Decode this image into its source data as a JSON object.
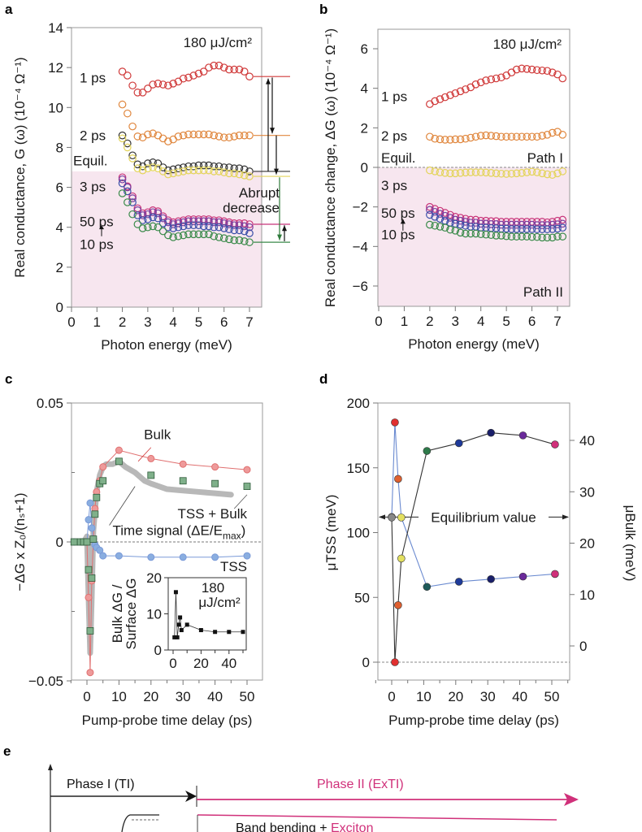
{
  "chart_data": [
    {
      "panel": "a",
      "type": "scatter",
      "annotation": "180 μJ/cm²",
      "xlabel": "Photon energy (meV)",
      "ylabel": "Real conductance, G (ω) (10⁻⁴ Ω⁻¹)",
      "xlim": [
        0,
        7.5
      ],
      "ylim": [
        0,
        14
      ],
      "xticks": [
        "0",
        "1",
        "2",
        "3",
        "4",
        "5",
        "6",
        "7"
      ],
      "yticks": [
        "0",
        "2",
        "4",
        "6",
        "8",
        "10",
        "12",
        "14"
      ],
      "shaded_region": {
        "ymax": 6.8,
        "color": "#f7e6ef"
      },
      "side_annotation": "Abrupt decrease",
      "x": [
        2.0,
        2.2,
        2.4,
        2.6,
        2.8,
        3.0,
        3.2,
        3.4,
        3.6,
        3.8,
        4.0,
        4.2,
        4.4,
        4.6,
        4.8,
        5.0,
        5.2,
        5.4,
        5.6,
        5.8,
        6.0,
        6.2,
        6.4,
        6.6,
        6.8,
        7.0
      ],
      "series": [
        {
          "name": "1 ps",
          "color": "#d03a3a",
          "values": [
            11.8,
            11.6,
            11.1,
            10.75,
            10.75,
            10.95,
            11.15,
            11.2,
            11.15,
            11.1,
            11.2,
            11.3,
            11.45,
            11.5,
            11.6,
            11.7,
            11.8,
            12.0,
            12.1,
            12.1,
            12.0,
            11.9,
            11.9,
            11.9,
            11.8,
            11.55
          ]
        },
        {
          "name": "2 ps",
          "color": "#e0873e",
          "values": [
            10.15,
            9.7,
            9.05,
            8.55,
            8.5,
            8.65,
            8.7,
            8.6,
            8.45,
            8.3,
            8.4,
            8.55,
            8.6,
            8.65,
            8.65,
            8.65,
            8.65,
            8.65,
            8.6,
            8.55,
            8.5,
            8.5,
            8.55,
            8.6,
            8.6,
            8.6
          ]
        },
        {
          "name": "Equil.",
          "color": "#333333",
          "values": [
            8.6,
            8.2,
            7.6,
            7.15,
            7.05,
            7.2,
            7.25,
            7.2,
            7.0,
            6.85,
            6.9,
            6.95,
            7.0,
            7.05,
            7.05,
            7.1,
            7.1,
            7.1,
            7.05,
            7.05,
            7.0,
            7.0,
            6.95,
            6.95,
            6.9,
            6.8
          ]
        },
        {
          "name": "3 ps",
          "color": "#e3d45a",
          "values": [
            8.45,
            8.0,
            7.45,
            6.95,
            6.85,
            6.95,
            7.0,
            6.95,
            6.8,
            6.65,
            6.7,
            6.75,
            6.8,
            6.85,
            6.85,
            6.85,
            6.85,
            6.85,
            6.8,
            6.8,
            6.75,
            6.7,
            6.7,
            6.65,
            6.6,
            6.55
          ]
        },
        {
          "name": "50 ps",
          "color": "#c8357a",
          "values": [
            6.5,
            6.05,
            5.55,
            4.95,
            4.7,
            4.75,
            4.85,
            4.8,
            4.55,
            4.35,
            4.25,
            4.3,
            4.35,
            4.4,
            4.4,
            4.4,
            4.4,
            4.4,
            4.35,
            4.35,
            4.3,
            4.25,
            4.2,
            4.2,
            4.2,
            4.15
          ]
        },
        {
          "name": "purple",
          "color": "#7a3fa0",
          "values": [
            6.4,
            6.0,
            5.45,
            4.85,
            4.6,
            4.65,
            4.75,
            4.7,
            4.45,
            4.25,
            4.15,
            4.2,
            4.25,
            4.3,
            4.3,
            4.3,
            4.3,
            4.3,
            4.25,
            4.25,
            4.2,
            4.15,
            4.1,
            4.1,
            4.05,
            4.0
          ]
        },
        {
          "name": "blue",
          "color": "#3a4fa8",
          "values": [
            6.2,
            5.8,
            5.25,
            4.6,
            4.35,
            4.4,
            4.5,
            4.45,
            4.2,
            4.0,
            3.95,
            4.0,
            4.05,
            4.1,
            4.1,
            4.1,
            4.05,
            4.05,
            4.0,
            4.0,
            3.95,
            3.9,
            3.85,
            3.85,
            3.8,
            3.7
          ]
        },
        {
          "name": "10 ps",
          "color": "#3a8a4a",
          "values": [
            5.7,
            5.25,
            4.65,
            4.15,
            3.95,
            4.0,
            4.05,
            4.0,
            3.8,
            3.6,
            3.5,
            3.55,
            3.6,
            3.65,
            3.65,
            3.65,
            3.65,
            3.65,
            3.55,
            3.5,
            3.45,
            3.4,
            3.35,
            3.35,
            3.3,
            3.25
          ]
        }
      ],
      "labels": [
        {
          "text": "1 ps",
          "color": "#d03a3a",
          "y": 11.5
        },
        {
          "text": "2 ps",
          "color": "#e0873e",
          "y": 8.6
        },
        {
          "text": "Equil.",
          "color": "#111111",
          "y": 7.35
        },
        {
          "text": "3 ps",
          "color": "#e3d45a",
          "y": 6.05
        },
        {
          "text": "50 ps",
          "color": "#c8357a",
          "y": 4.3
        },
        {
          "text": "10 ps",
          "color": "#3a8a4a",
          "y": 3.15
        }
      ]
    },
    {
      "panel": "b",
      "type": "scatter",
      "annotation": "180 μJ/cm²",
      "xlabel": "Photon energy (meV)",
      "ylabel": "Real conductance change, ΔG (ω) (10⁻⁴ Ω⁻¹)",
      "xlim": [
        0,
        7.5
      ],
      "ylim": [
        -7,
        7
      ],
      "xticks": [
        "0",
        "1",
        "2",
        "3",
        "4",
        "5",
        "6",
        "7"
      ],
      "yticks": [
        "−6",
        "−4",
        "−2",
        "0",
        "2",
        "4",
        "6"
      ],
      "ytick_values": [
        -6,
        -4,
        -2,
        0,
        2,
        4,
        6
      ],
      "shaded_region": {
        "ymax": 0,
        "color": "#f7e6ef"
      },
      "path_labels": {
        "path1": "Path I",
        "path2": "Path II"
      },
      "x": [
        2.0,
        2.2,
        2.4,
        2.6,
        2.8,
        3.0,
        3.2,
        3.4,
        3.6,
        3.8,
        4.0,
        4.2,
        4.4,
        4.6,
        4.8,
        5.0,
        5.2,
        5.4,
        5.6,
        5.8,
        6.0,
        6.2,
        6.4,
        6.6,
        6.8,
        7.0,
        7.2
      ],
      "series": [
        {
          "name": "1 ps",
          "color": "#d03a3a",
          "values": [
            3.2,
            3.35,
            3.45,
            3.55,
            3.65,
            3.75,
            3.85,
            3.95,
            4.05,
            4.2,
            4.3,
            4.4,
            4.45,
            4.5,
            4.55,
            4.65,
            4.8,
            4.95,
            5.0,
            4.98,
            4.95,
            4.92,
            4.9,
            4.88,
            4.8,
            4.7,
            4.5
          ]
        },
        {
          "name": "2 ps",
          "color": "#e0873e",
          "values": [
            1.55,
            1.45,
            1.42,
            1.4,
            1.4,
            1.42,
            1.42,
            1.45,
            1.5,
            1.55,
            1.6,
            1.62,
            1.6,
            1.58,
            1.55,
            1.55,
            1.55,
            1.55,
            1.55,
            1.55,
            1.55,
            1.55,
            1.6,
            1.65,
            1.75,
            1.8,
            1.65
          ]
        },
        {
          "name": "3 ps",
          "color": "#e3d45a",
          "values": [
            -0.15,
            -0.2,
            -0.25,
            -0.28,
            -0.3,
            -0.3,
            -0.28,
            -0.26,
            -0.25,
            -0.25,
            -0.25,
            -0.26,
            -0.28,
            -0.3,
            -0.32,
            -0.33,
            -0.32,
            -0.3,
            -0.28,
            -0.25,
            -0.22,
            -0.25,
            -0.3,
            -0.35,
            -0.38,
            -0.3,
            -0.2
          ]
        },
        {
          "name": "50 ps",
          "color": "#c8357a",
          "values": [
            -2.0,
            -2.1,
            -2.2,
            -2.3,
            -2.4,
            -2.5,
            -2.55,
            -2.6,
            -2.65,
            -2.65,
            -2.7,
            -2.7,
            -2.72,
            -2.72,
            -2.75,
            -2.75,
            -2.75,
            -2.75,
            -2.75,
            -2.75,
            -2.75,
            -2.75,
            -2.75,
            -2.78,
            -2.75,
            -2.7,
            -2.65
          ]
        },
        {
          "name": "purple",
          "color": "#7a3fa0",
          "values": [
            -2.15,
            -2.25,
            -2.35,
            -2.45,
            -2.55,
            -2.65,
            -2.7,
            -2.75,
            -2.8,
            -2.8,
            -2.85,
            -2.85,
            -2.87,
            -2.87,
            -2.9,
            -2.9,
            -2.9,
            -2.9,
            -2.9,
            -2.9,
            -2.9,
            -2.92,
            -2.92,
            -2.92,
            -2.9,
            -2.88,
            -2.85
          ]
        },
        {
          "name": "blue",
          "color": "#3a4fa8",
          "values": [
            -2.4,
            -2.5,
            -2.6,
            -2.7,
            -2.8,
            -2.85,
            -2.9,
            -2.95,
            -3.0,
            -3.0,
            -3.05,
            -3.05,
            -3.07,
            -3.08,
            -3.1,
            -3.1,
            -3.12,
            -3.12,
            -3.12,
            -3.12,
            -3.12,
            -3.13,
            -3.13,
            -3.13,
            -3.12,
            -3.1,
            -3.05
          ]
        },
        {
          "name": "10 ps",
          "color": "#3a8a4a",
          "values": [
            -2.9,
            -2.95,
            -3.0,
            -3.05,
            -3.15,
            -3.2,
            -3.3,
            -3.35,
            -3.35,
            -3.35,
            -3.38,
            -3.4,
            -3.42,
            -3.45,
            -3.45,
            -3.48,
            -3.5,
            -3.5,
            -3.5,
            -3.5,
            -3.52,
            -3.52,
            -3.55,
            -3.55,
            -3.55,
            -3.5,
            -3.5
          ]
        }
      ],
      "labels": [
        {
          "text": "1 ps",
          "color": "#d03a3a",
          "y": 3.6
        },
        {
          "text": "2 ps",
          "color": "#e0873e",
          "y": 1.6
        },
        {
          "text": "Equil.",
          "color": "#111111",
          "y": 0.5
        },
        {
          "text": "3 ps",
          "color": "#e3d45a",
          "y": -0.9
        },
        {
          "text": "50 ps",
          "color": "#c8357a",
          "y": -2.3
        },
        {
          "text": "10 ps",
          "color": "#3a8a4a",
          "y": -3.4
        }
      ]
    },
    {
      "panel": "c",
      "type": "line",
      "xlabel": "Pump-probe time delay (ps)",
      "ylabel": "−ΔG x Z₀/(nₛ+1)",
      "xlim": [
        -5,
        50
      ],
      "ylim": [
        -0.05,
        0.05
      ],
      "xticks": [
        "0",
        "10",
        "20",
        "30",
        "40",
        "50"
      ],
      "xtick_values": [
        0,
        10,
        20,
        30,
        40,
        50
      ],
      "yticks": [
        "−0.05",
        "0",
        "0.05"
      ],
      "ytick_values": [
        -0.05,
        0,
        0.05
      ],
      "series": [
        {
          "name": "Bulk",
          "color": "#e07070",
          "x": [
            -4,
            -2,
            -1,
            0,
            0.5,
            1,
            1.5,
            2,
            2.5,
            3,
            4,
            5,
            10,
            20,
            30,
            40,
            50
          ],
          "y": [
            0,
            0,
            0,
            0,
            -0.02,
            -0.047,
            -0.014,
            0.001,
            0.012,
            0.018,
            0.022,
            0.027,
            0.033,
            0.03,
            0.028,
            0.027,
            0.026
          ]
        },
        {
          "name": "TSS + Bulk",
          "color": "#5a9a6a",
          "x": [
            -4,
            -2,
            -1,
            0,
            0.5,
            1,
            1.5,
            2,
            2.5,
            3,
            4,
            5,
            10,
            20,
            30,
            40,
            50
          ],
          "y": [
            0,
            0,
            0,
            0,
            -0.01,
            -0.032,
            -0.013,
            0.001,
            0.01,
            0.016,
            0.021,
            0.022,
            0.029,
            0.024,
            0.022,
            0.021,
            0.02
          ]
        },
        {
          "name": "TSS",
          "color": "#8aaee0",
          "x": [
            -4,
            -2,
            -1,
            0,
            0.5,
            1,
            1.5,
            2,
            2.5,
            3,
            4,
            5,
            10,
            20,
            30,
            40,
            50
          ],
          "y": [
            0,
            0,
            0,
            0,
            0.008,
            0.014,
            0.005,
            0.001,
            -0.001,
            -0.002,
            -0.003,
            -0.005,
            -0.005,
            -0.0055,
            -0.0055,
            -0.0055,
            -0.005
          ]
        },
        {
          "name": "Time signal (ΔE/Eₘₐₓ)",
          "color": "#b8b8b8",
          "x": [
            -1,
            0,
            0.5,
            1,
            1.5,
            2,
            3,
            4,
            5,
            6,
            8,
            10,
            12,
            15,
            18,
            20,
            25,
            30,
            35,
            40,
            45
          ],
          "y": [
            0,
            0.002,
            -0.02,
            -0.04,
            -0.02,
            0.004,
            0.018,
            0.024,
            0.027,
            0.028,
            0.028,
            0.029,
            0.027,
            0.025,
            0.022,
            0.021,
            0.019,
            0.0185,
            0.018,
            0.0175,
            0.017
          ]
        }
      ],
      "labels": {
        "bulk": "Bulk",
        "tss_bulk": "TSS + Bulk",
        "time_signal": "Time signal (ΔE/E",
        "time_sub": "max",
        "time_close": ")",
        "tss": "TSS"
      },
      "inset": {
        "ylabel_line1": "Bulk ΔG /",
        "ylabel_line2": "Surface ΔG",
        "annotation_line1": "180",
        "annotation_line2": "μJ/cm²",
        "xlim": [
          -3,
          52
        ],
        "ylim": [
          0,
          20
        ],
        "xticks": [
          "0",
          "20",
          "40"
        ],
        "xtick_values": [
          0,
          20,
          40
        ],
        "yticks": [
          "0",
          "10",
          "20"
        ],
        "ytick_values": [
          0,
          10,
          20
        ],
        "x": [
          1,
          2,
          3,
          4,
          5,
          6,
          10,
          20,
          30,
          40,
          50
        ],
        "y": [
          3.5,
          16,
          3.5,
          7,
          9,
          5.5,
          7,
          5.5,
          5,
          5,
          5
        ]
      }
    },
    {
      "panel": "d",
      "type": "line",
      "xlabel": "Pump-probe time delay (ps)",
      "ylabel_left": "μTSS (meV)",
      "ylabel_right": "μBulk (meV)",
      "xlim": [
        -5,
        55
      ],
      "ylim_left": [
        -12,
        200
      ],
      "ylim_right": [
        -3,
        44
      ],
      "xticks": [
        "0",
        "10",
        "20",
        "30",
        "40",
        "50"
      ],
      "xtick_values": [
        0,
        10,
        20,
        30,
        40,
        50
      ],
      "yticks_left": [
        "0",
        "50",
        "100",
        "150",
        "200"
      ],
      "ytick_values_left": [
        0,
        50,
        100,
        150,
        200
      ],
      "yticks_right": [
        "0",
        "10",
        "20",
        "30",
        "40"
      ],
      "ytick_values_right": [
        0,
        10,
        20,
        30,
        40
      ],
      "annotation": "Equilibrium value",
      "equilibrium_left": 112,
      "series": [
        {
          "name": "μTSS",
          "axis": "left",
          "line_color": "#333333",
          "x": [
            0,
            1,
            2,
            3,
            11,
            21,
            31,
            41,
            51
          ],
          "y": [
            112,
            0,
            44,
            80,
            163,
            169,
            177,
            175,
            168
          ],
          "colors": [
            "#888888",
            "#e03030",
            "#e06030",
            "#e3e060",
            "#2e7a4a",
            "#1e3a9a",
            "#1a1f6a",
            "#6a2a9a",
            "#d0307a"
          ]
        },
        {
          "name": "μBulk",
          "axis": "right",
          "line_color": "#6a8ad0",
          "x": [
            0,
            1,
            2,
            3,
            11,
            21,
            31,
            41,
            51
          ],
          "y": [
            25,
            43.5,
            32.5,
            25,
            11.5,
            12.5,
            13,
            13.5,
            14
          ],
          "colors": [
            "#888888",
            "#e03030",
            "#e06030",
            "#e3e060",
            "#1e5a5a",
            "#1e3a9a",
            "#1a1f6a",
            "#6a2a9a",
            "#d0307a"
          ]
        }
      ]
    }
  ],
  "panel_labels": {
    "a": "a",
    "b": "b",
    "c": "c",
    "d": "d",
    "e": "e"
  },
  "panel_e": {
    "phase1": "Phase I (TI)",
    "phase2": "Phase II (ExTI)",
    "phase1_color": "#111111",
    "phase2_color": "#d0307a",
    "band_text": "Band bending + ",
    "exciton_text": "Exciton"
  }
}
